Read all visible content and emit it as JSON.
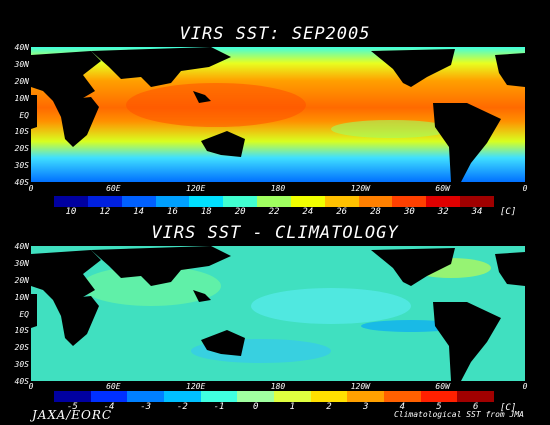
{
  "panel_top": {
    "title": "VIRS SST: SEP2005",
    "lat_labels": [
      "40N",
      "30N",
      "20N",
      "10N",
      "EQ",
      "10S",
      "20S",
      "30S",
      "40S"
    ],
    "lon_labels": [
      "0",
      "60E",
      "120E",
      "180",
      "120W",
      "60W",
      "0"
    ],
    "colorbar": {
      "ticks": [
        "10",
        "12",
        "14",
        "16",
        "18",
        "20",
        "22",
        "24",
        "26",
        "28",
        "30",
        "32",
        "34"
      ],
      "unit": "[C]",
      "colors": [
        "#0000a0",
        "#0020e0",
        "#0060ff",
        "#00a0ff",
        "#00e0ff",
        "#40ffd0",
        "#a0ff60",
        "#f0ff00",
        "#ffc000",
        "#ff8000",
        "#ff4000",
        "#e00000",
        "#a00000"
      ]
    }
  },
  "panel_bottom": {
    "title": "VIRS SST - CLIMATOLOGY",
    "lat_labels": [
      "40N",
      "30N",
      "20N",
      "10N",
      "EQ",
      "10S",
      "20S",
      "30S",
      "40S"
    ],
    "lon_labels": [
      "0",
      "60E",
      "120E",
      "180",
      "120W",
      "60W",
      "0"
    ],
    "colorbar": {
      "ticks": [
        "-5",
        "-4",
        "-3",
        "-2",
        "-1",
        "0",
        "1",
        "2",
        "3",
        "4",
        "5",
        "6"
      ],
      "unit": "[C]",
      "colors": [
        "#0000a0",
        "#0030ff",
        "#0080ff",
        "#00c0ff",
        "#40ffe0",
        "#a0ffa0",
        "#e0ff40",
        "#ffe000",
        "#ffa000",
        "#ff6000",
        "#ff2000",
        "#a00000"
      ]
    }
  },
  "footer": {
    "credit": "JAXA/EORC",
    "source": "Climatological SST from JMA"
  },
  "colors": {
    "land": "#000000",
    "warm": "#ff6a00",
    "ocean_mid": "#00c8ff",
    "anomaly_base": "#40e0d0"
  }
}
